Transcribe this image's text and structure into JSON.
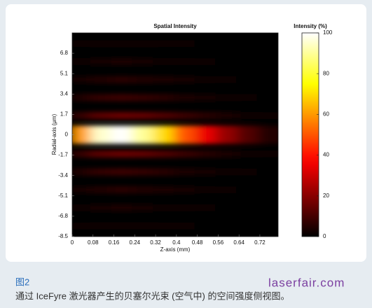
{
  "chart_data": {
    "type": "heatmap",
    "title": "Spatial Intensity",
    "x_label": "Z-axis (mm)",
    "y_label": "Radial-axis (μm)",
    "xlim": [
      0,
      0.79
    ],
    "ylim": [
      -8.5,
      8.5
    ],
    "xticks": [
      0,
      0.08,
      0.16,
      0.24,
      0.32,
      0.4,
      0.48,
      0.56,
      0.64,
      0.72
    ],
    "yticks": [
      6.8,
      5.1,
      3.4,
      1.7,
      0,
      -1.7,
      -3.4,
      -5.1,
      -6.8,
      -8.5
    ],
    "x": [
      0.04,
      0.12,
      0.2,
      0.28,
      0.36,
      0.44,
      0.52,
      0.6,
      0.68,
      0.76
    ],
    "y": [
      7.6,
      6.1,
      4.6,
      3.1,
      1.6,
      0,
      -1.6,
      -3.1,
      -4.6,
      -6.1,
      -7.6
    ],
    "z": [
      [
        1,
        2,
        2,
        2,
        1,
        1,
        0,
        0,
        0,
        0
      ],
      [
        2,
        3,
        4,
        3,
        2,
        2,
        1,
        0,
        0,
        0
      ],
      [
        3,
        5,
        6,
        5,
        4,
        3,
        2,
        1,
        0,
        0
      ],
      [
        5,
        8,
        9,
        8,
        6,
        4,
        3,
        2,
        1,
        0
      ],
      [
        8,
        14,
        16,
        15,
        12,
        9,
        6,
        4,
        2,
        1
      ],
      [
        60,
        95,
        100,
        90,
        70,
        50,
        35,
        22,
        12,
        5
      ],
      [
        8,
        14,
        16,
        15,
        12,
        9,
        6,
        4,
        2,
        1
      ],
      [
        5,
        8,
        9,
        8,
        6,
        4,
        3,
        2,
        1,
        0
      ],
      [
        3,
        5,
        6,
        5,
        4,
        3,
        2,
        1,
        0,
        0
      ],
      [
        2,
        3,
        4,
        3,
        2,
        2,
        1,
        0,
        0,
        0
      ],
      [
        1,
        2,
        2,
        2,
        1,
        1,
        0,
        0,
        0,
        0
      ]
    ],
    "colormap": "hot",
    "colorbar_title": "Intensity (%)",
    "clim": [
      0,
      100
    ],
    "cticks": [
      0,
      20,
      40,
      60,
      80,
      100
    ]
  },
  "caption": {
    "figure_label": "图2",
    "text": "通过 IceFyre 激光器产生的贝塞尔光束 (空气中) 的空间强度侧视图。"
  },
  "watermark": "laserfair.com"
}
